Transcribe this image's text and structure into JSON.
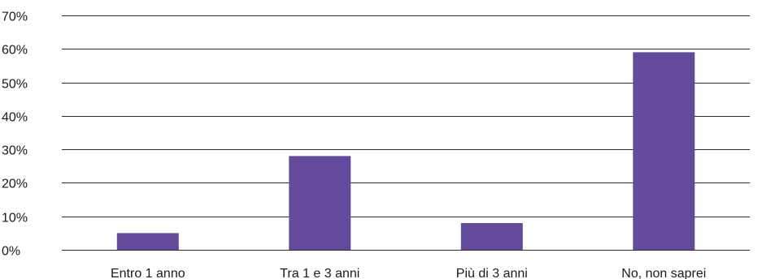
{
  "chart_data": {
    "type": "bar",
    "categories": [
      "Entro 1 anno",
      "Tra 1 e 3 anni",
      "Più di 3 anni",
      "No, non saprei"
    ],
    "values": [
      5,
      28,
      8,
      59
    ],
    "ylim": [
      0,
      70
    ],
    "yticks": [
      "0%",
      "10%",
      "20%",
      "30%",
      "40%",
      "50%",
      "60%",
      "70%"
    ],
    "ytick_values": [
      0,
      10,
      20,
      30,
      40,
      50,
      60,
      70
    ],
    "grid": true,
    "bar_color": "#634a9b",
    "grid_color": "#2a2a2a",
    "text_color": "#1a1a1a"
  }
}
